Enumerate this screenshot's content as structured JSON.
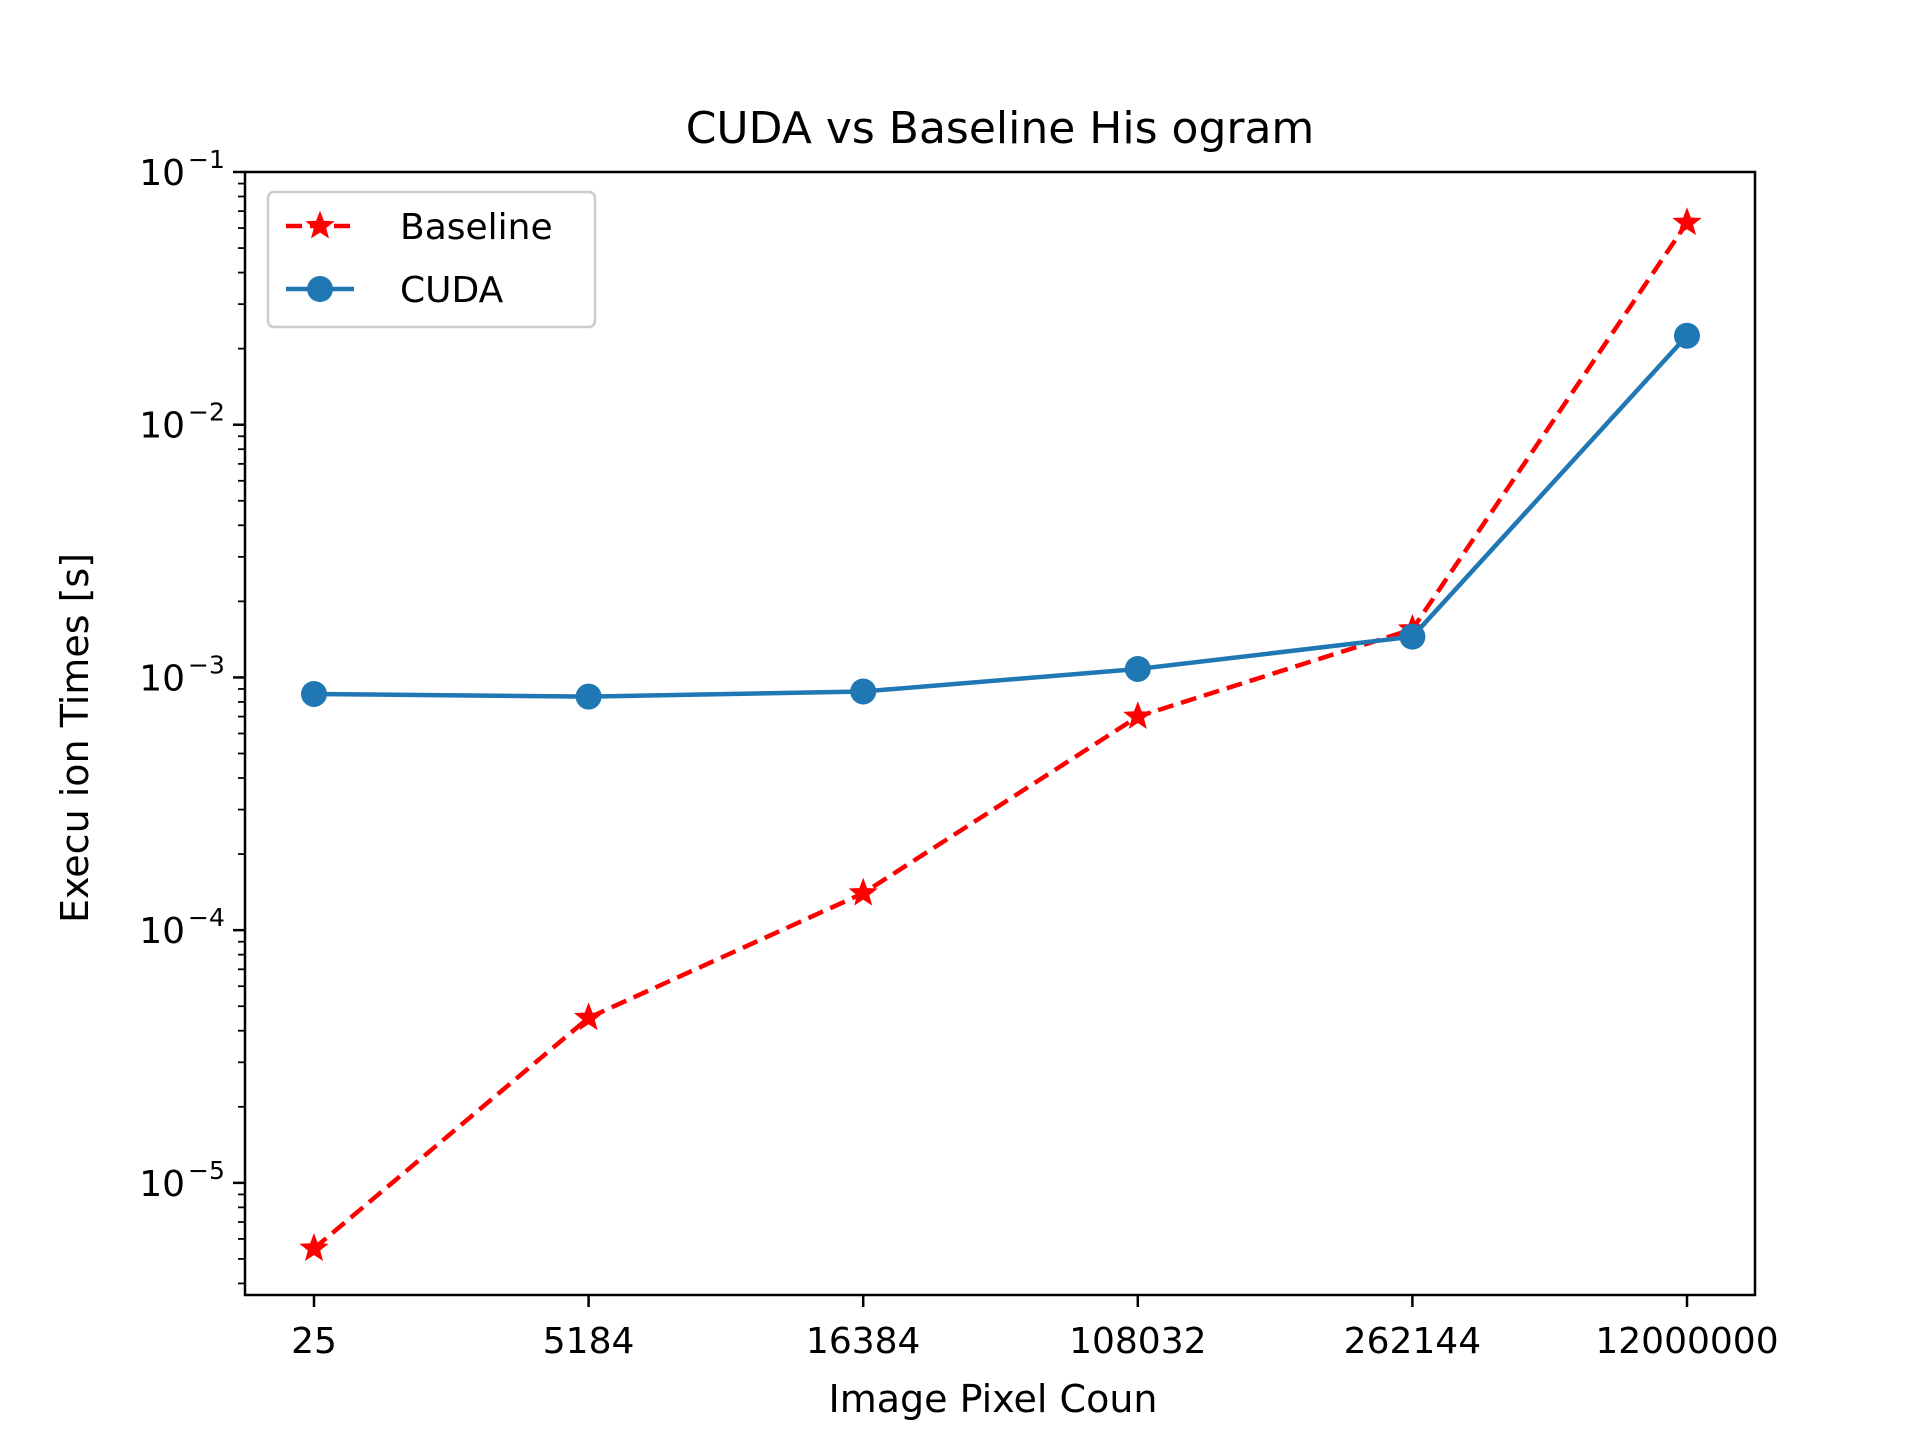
{
  "chart_data": {
    "type": "line",
    "title": "CUDA vs Baseline His ogram",
    "xlabel": "Image Pixel Coun",
    "ylabel": "Execu ion Times [s]",
    "yscale": "log",
    "categories": [
      "25",
      "5184",
      "16384",
      "108032",
      "262144",
      "12000000"
    ],
    "ylim": [
      3.6e-06,
      0.1
    ],
    "yticks": [
      {
        "base": "10",
        "exp": "−5",
        "value": 1e-05
      },
      {
        "base": "10",
        "exp": "−4",
        "value": 0.0001
      },
      {
        "base": "10",
        "exp": "−3",
        "value": 0.001
      },
      {
        "base": "10",
        "exp": "−2",
        "value": 0.01
      },
      {
        "base": "10",
        "exp": "−1",
        "value": 0.1
      }
    ],
    "legend_position": "top-left",
    "grid": false,
    "series": [
      {
        "name": "Baseline",
        "color": "#ff0000",
        "style": "dashed",
        "marker": "star",
        "values": [
          5.5e-06,
          4.5e-05,
          0.00014,
          0.0007,
          0.00155,
          0.063
        ]
      },
      {
        "name": "CUDA",
        "color": "#1f77b4",
        "style": "solid",
        "marker": "circle",
        "values": [
          0.00086,
          0.00084,
          0.00088,
          0.00108,
          0.00145,
          0.0225
        ]
      }
    ]
  }
}
